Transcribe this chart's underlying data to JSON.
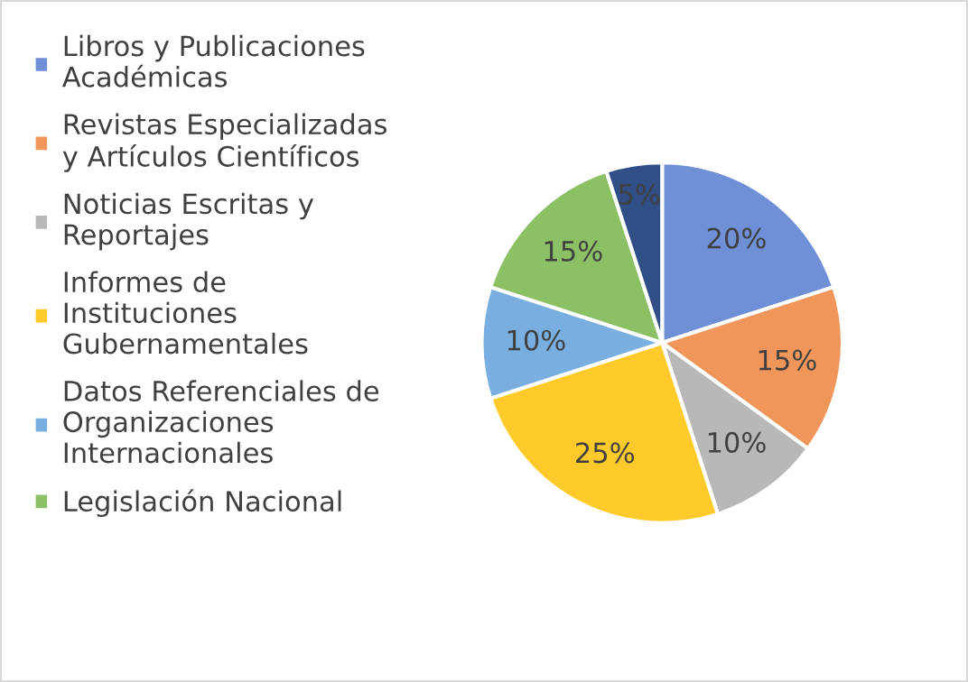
{
  "chart_data": {
    "type": "pie",
    "categories": [
      "Libros y Publicaciones Académicas",
      "Revistas Especializadas y Artículos Científicos",
      "Noticias Escritas y Reportajes",
      "Informes de Instituciones Gubernamentales",
      "Datos Referenciales de Organizaciones Internacionales",
      "Legislación Nacional",
      null
    ],
    "values": [
      20,
      15,
      10,
      25,
      10,
      15,
      5
    ],
    "colors": [
      "#6f8fd6",
      "#f0965a",
      "#b8b8b8",
      "#ffca2a",
      "#78afe0",
      "#8cc064",
      "#2f4f86"
    ],
    "value_labels": [
      "20%",
      "15%",
      "10%",
      "25%",
      "10%",
      "15%",
      "5%"
    ],
    "legend": "left"
  }
}
